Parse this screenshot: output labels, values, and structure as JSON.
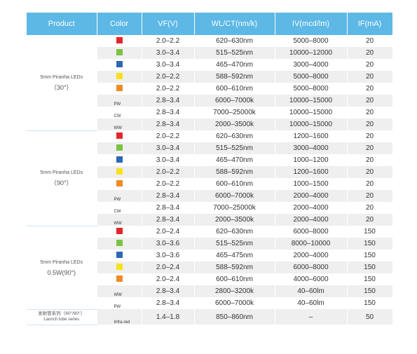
{
  "header": [
    "Product",
    "Color",
    "VF(V)",
    "WL/CT(nm/k)",
    "IV(mcd/lm)",
    "IF(mA)"
  ],
  "groups": [
    {
      "product": [
        "5mm Piranha LEDs",
        "（30°）"
      ],
      "rows": [
        {
          "swatch": "#e3262b",
          "cells": [
            "2.0–2.2",
            "620–630nm",
            "5000–8000",
            "20"
          ]
        },
        {
          "swatch": "#7cc242",
          "cells": [
            "3.0–3.4",
            "515–525nm",
            "10000–12000",
            "20"
          ]
        },
        {
          "swatch": "#2e67b1",
          "cells": [
            "3.0–3.4",
            "465–470nm",
            "3000–4000",
            "20"
          ]
        },
        {
          "swatch": "#f6e11c",
          "cells": [
            "2.0–2.2",
            "588–592nm",
            "5000–8000",
            "20"
          ]
        },
        {
          "swatch": "#f08a24",
          "cells": [
            "2.0–2.2",
            "600–610nm",
            "5000–8000",
            "20"
          ]
        },
        {
          "label": "PW",
          "cells": [
            "2.8–3.4",
            "6000–7000k",
            "10000–15000",
            "20"
          ]
        },
        {
          "label": "CW",
          "cells": [
            "2.8–3.4",
            "7000–25000k",
            "10000–15000",
            "20"
          ]
        },
        {
          "label": "WW",
          "cells": [
            "2.8–3.4",
            "2000–3500k",
            "10000–15000",
            "20"
          ]
        }
      ]
    },
    {
      "product": [
        "5mm Piranha LEDs",
        "（90°）"
      ],
      "rows": [
        {
          "swatch": "#e3262b",
          "cells": [
            "2.0–2.2",
            "620–630nm",
            "1200–1600",
            "20"
          ]
        },
        {
          "swatch": "#7cc242",
          "cells": [
            "3.0–3.4",
            "515–525nm",
            "3000–4000",
            "20"
          ]
        },
        {
          "swatch": "#2e67b1",
          "cells": [
            "3.0–3.4",
            "465–470nm",
            "1000–1200",
            "20"
          ]
        },
        {
          "swatch": "#f6e11c",
          "cells": [
            "2.0–2.2",
            "588–592nm",
            "1200–1600",
            "20"
          ]
        },
        {
          "swatch": "#f08a24",
          "cells": [
            "2.0–2.2",
            "600–610nm",
            "1000–1500",
            "20"
          ]
        },
        {
          "label": "PW",
          "cells": [
            "2.8–3.4",
            "6000–7000k",
            "2000–4000",
            "20"
          ]
        },
        {
          "label": "CW",
          "cells": [
            "2.8–3.4",
            "7000–25000k",
            "2000–4000",
            "20"
          ]
        },
        {
          "label": "WW",
          "cells": [
            "2.8–3.4",
            "2000–3500k",
            "2000–4000",
            "20"
          ]
        }
      ]
    },
    {
      "product": [
        "5mm Piranha LEDs",
        "0.5W(90°)"
      ],
      "rows": [
        {
          "swatch": "#e3262b",
          "cells": [
            "2.0–2.4",
            "620–630nm",
            "6000–8000",
            "150"
          ]
        },
        {
          "swatch": "#7cc242",
          "cells": [
            "3.0–3.6",
            "515–525nm",
            "8000–10000",
            "150"
          ]
        },
        {
          "swatch": "#2e67b1",
          "cells": [
            "3.0–3.6",
            "465–475nm",
            "2000–4000",
            "150"
          ]
        },
        {
          "swatch": "#f6e11c",
          "cells": [
            "2.0–2.4",
            "588–592nm",
            "6000–8000",
            "150"
          ]
        },
        {
          "swatch": "#f08a24",
          "cells": [
            "2.0–2.4",
            "600–610nm",
            "4000–6000",
            "150"
          ]
        },
        {
          "label": "WW",
          "cells": [
            "2.8–3.4",
            "2800–3200k",
            "40–60lm",
            "150"
          ]
        },
        {
          "label": "PW",
          "cells": [
            "2.8–3.4",
            "6000–7000k",
            "40–60lm",
            "150"
          ]
        }
      ]
    },
    {
      "product": [
        "发射管系列（60°/90°）",
        "Launch tube series"
      ],
      "small": true,
      "rows": [
        {
          "label": "Infra-red",
          "cells": [
            "1.4–1.8",
            "850–860nm",
            "–",
            "50"
          ]
        }
      ]
    }
  ]
}
